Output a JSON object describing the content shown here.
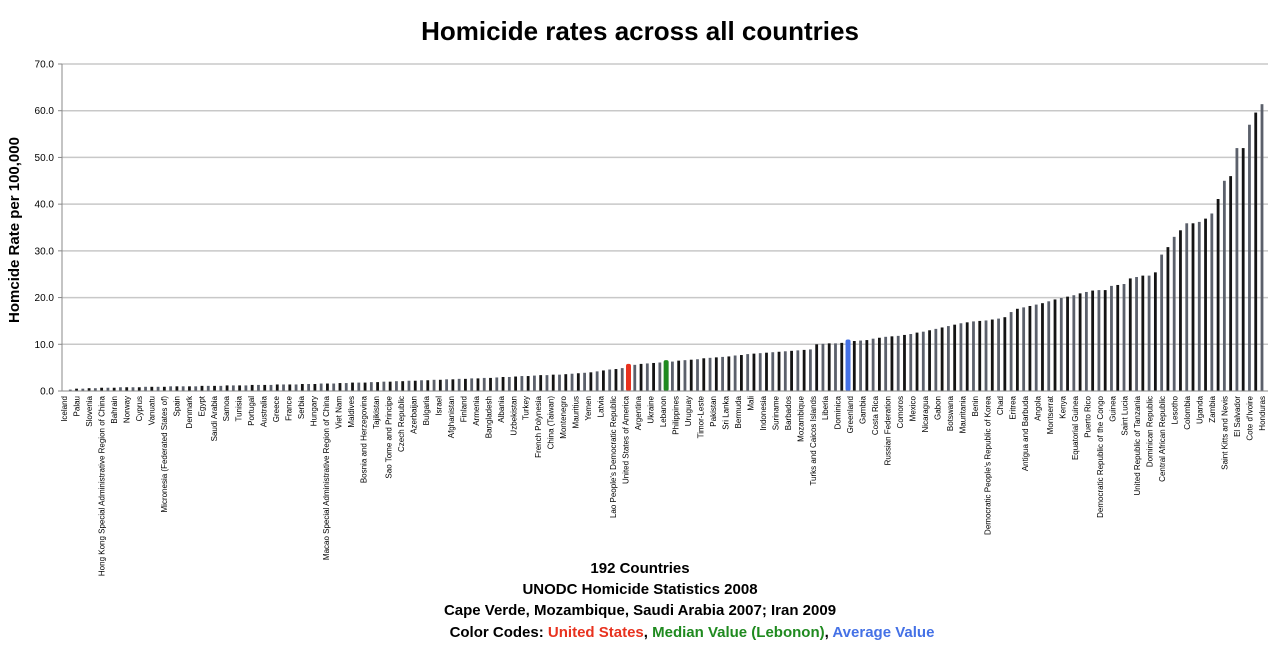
{
  "chart_data": {
    "type": "bar",
    "title": "Homicide rates across all countries",
    "ylabel": "Homcide Rate per 100,000",
    "ylim": [
      0,
      70
    ],
    "yticks": [
      "0.0",
      "10.0",
      "20.0",
      "30.0",
      "40.0",
      "50.0",
      "60.0",
      "70.0"
    ],
    "grid": true,
    "legend": "none",
    "bar_colors": [
      "#141414",
      "#5b606b"
    ],
    "highlights": [
      {
        "label": "United States of America",
        "index": 90,
        "color": "#e8321f"
      },
      {
        "label": "Lebanon",
        "index": 96,
        "color": "#1f8a1f"
      },
      {
        "label": "Average Value",
        "index": 125,
        "color": "#4471e6"
      }
    ],
    "tick_labels": [
      "Iceland",
      "Palau",
      "Slovenia",
      "Hong Kong Special Administrative Region of China",
      "Bahrain",
      "Norway",
      "Cyprus",
      "Vanuatu",
      "Micronesia (Federated States of)",
      "Spain",
      "Denmark",
      "Egypt",
      "Saudi Arabia",
      "Samoa",
      "Tunisia",
      "Portugal",
      "Australia",
      "Greece",
      "France",
      "Serbia",
      "Hungary",
      "Macao Special Administrative Region of China",
      "Viet Nam",
      "Maldives",
      "Bosnia and Herzegovina",
      "Tajikistan",
      "Sao Tome and Principe",
      "Czech Republic",
      "Azerbaijan",
      "Bulgaria",
      "Israel",
      "Afghanistan",
      "Finland",
      "Armenia",
      "Bangladesh",
      "Albania",
      "Uzbekistan",
      "Turkey",
      "French Polynesia",
      "China (Taiwan)",
      "Montenegro",
      "Mauritius",
      "Yemen",
      "Latvia",
      "Lao People's Democratic Republic",
      "United States of America",
      "Argentina",
      "Ukraine",
      "Lebanon",
      "Philippines",
      "Uruguay",
      "Timor-Leste",
      "Pakistan",
      "Sri Lanka",
      "Bermuda",
      "Mali",
      "Indonesia",
      "Suriname",
      "Barbados",
      "Mozambique",
      "Turks and Caicos Islands",
      "Liberia",
      "Dominica",
      "Greenland",
      "Gambia",
      "Costa Rica",
      "Russian Federation",
      "Comoros",
      "Mexico",
      "Nicaragua",
      "Gabon",
      "Botswana",
      "Mauritania",
      "Benin",
      "Democratic People's Republic of Korea",
      "Chad",
      "Eritrea",
      "Antigua and Barbuda",
      "Angola",
      "Montserrat",
      "Kenya",
      "Equatorial Guinea",
      "Puerto Rico",
      "Democratic Republic of the Congo",
      "Guinea",
      "Saint Lucia",
      "United Republic of Tanzania",
      "Dominican Republic",
      "Central African Republic",
      "Lesotho",
      "Colombia",
      "Uganda",
      "Zambia",
      "Saint Kitts and Nevis",
      "El Salvador",
      "Cote d'Ivoire",
      "Honduras"
    ],
    "values": [
      0.0,
      0.3,
      0.5,
      0.5,
      0.6,
      0.6,
      0.7,
      0.7,
      0.7,
      0.8,
      0.8,
      0.8,
      0.8,
      0.9,
      0.9,
      0.9,
      0.9,
      1.0,
      1.0,
      1.0,
      1.0,
      1.0,
      1.1,
      1.1,
      1.1,
      1.1,
      1.2,
      1.2,
      1.2,
      1.2,
      1.3,
      1.3,
      1.3,
      1.3,
      1.4,
      1.4,
      1.4,
      1.4,
      1.5,
      1.5,
      1.5,
      1.6,
      1.6,
      1.6,
      1.7,
      1.7,
      1.8,
      1.8,
      1.8,
      1.9,
      1.9,
      2.0,
      2.0,
      2.1,
      2.1,
      2.2,
      2.2,
      2.3,
      2.3,
      2.4,
      2.4,
      2.5,
      2.5,
      2.6,
      2.6,
      2.7,
      2.7,
      2.8,
      2.8,
      2.9,
      3.0,
      3.0,
      3.1,
      3.2,
      3.2,
      3.3,
      3.4,
      3.4,
      3.5,
      3.5,
      3.6,
      3.7,
      3.8,
      3.9,
      4.0,
      4.2,
      4.4,
      4.6,
      4.7,
      4.9,
      5.6,
      5.6,
      5.8,
      5.9,
      6.0,
      6.1,
      6.4,
      6.3,
      6.5,
      6.6,
      6.7,
      6.8,
      7.0,
      7.1,
      7.2,
      7.3,
      7.4,
      7.6,
      7.7,
      7.9,
      8.0,
      8.1,
      8.2,
      8.3,
      8.4,
      8.5,
      8.6,
      8.7,
      8.8,
      8.9,
      10.0,
      10.1,
      10.2,
      10.2,
      10.3,
      10.8,
      10.7,
      10.8,
      10.9,
      11.2,
      11.4,
      11.6,
      11.7,
      11.8,
      12.0,
      12.2,
      12.5,
      12.7,
      13.0,
      13.3,
      13.6,
      13.9,
      14.2,
      14.5,
      14.7,
      14.9,
      15.0,
      15.1,
      15.3,
      15.5,
      15.8,
      16.9,
      17.6,
      17.9,
      18.2,
      18.5,
      18.8,
      19.2,
      19.6,
      19.9,
      20.2,
      20.5,
      20.9,
      21.2,
      21.5,
      21.6,
      21.6,
      22.5,
      22.7,
      22.9,
      24.1,
      24.4,
      24.7,
      24.7,
      25.4,
      29.2,
      30.8,
      33.0,
      34.4,
      35.9,
      35.9,
      36.2,
      36.9,
      38.0,
      41.1,
      45.0,
      46.0,
      52.0,
      52.0,
      57.0,
      59.6,
      61.4
    ]
  },
  "footer": {
    "line1": "192 Countries",
    "line2": "UNODC Homicide Statistics 2008",
    "line3": "Cape Verde, Mozambique, Saudi Arabia 2007; Iran 2009",
    "legend_prefix": "Color Codes: ",
    "legend_us": "United States",
    "legend_sep1": ", ",
    "legend_median": "Median Value (Lebonon)",
    "legend_sep2": ", ",
    "legend_avg": "Average Value"
  }
}
